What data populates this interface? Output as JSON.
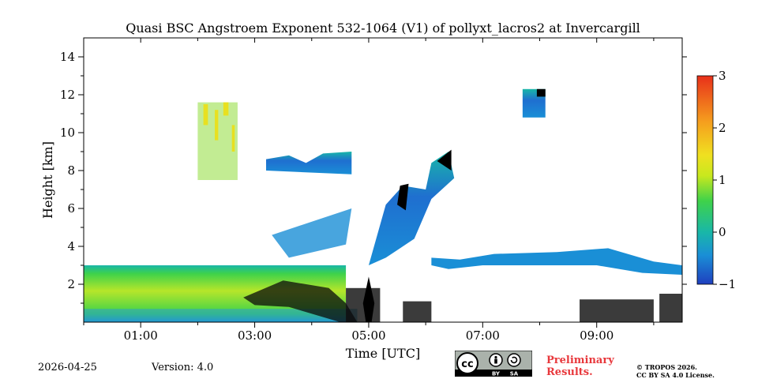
{
  "chart_data": {
    "type": "heatmap",
    "title": "Quasi BSC Angstroem Exponent 532-1064 (V1) of pollyxt_lacros2 at Invercargill",
    "xlabel": "Time [UTC]",
    "ylabel": "Height [km]",
    "xlim_hours": [
      0,
      10.5
    ],
    "ylim_km": [
      0,
      15
    ],
    "x_ticks": [
      {
        "value": 1,
        "label": "01:00"
      },
      {
        "value": 3,
        "label": "03:00"
      },
      {
        "value": 5,
        "label": "05:00"
      },
      {
        "value": 7,
        "label": "07:00"
      },
      {
        "value": 9,
        "label": "09:00"
      }
    ],
    "x_minor_ticks": [
      0,
      2,
      4,
      6,
      8,
      10
    ],
    "y_ticks": [
      2,
      4,
      6,
      8,
      10,
      12,
      14
    ],
    "colorbar": {
      "min": -1,
      "max": 3,
      "ticks": [
        -1,
        0,
        1,
        2,
        3
      ],
      "colormap": [
        "#1f3fbf",
        "#1a8fd6",
        "#19b7a8",
        "#3fd24a",
        "#c8e81e",
        "#f0e020",
        "#f59e1e",
        "#e8301a"
      ]
    },
    "features": [
      {
        "name": "boundary layer aerosol",
        "t_start": 0.0,
        "t_end": 4.6,
        "top_km": 3.0,
        "value_range": [
          0.3,
          1.2
        ]
      },
      {
        "name": "cirrus cloud",
        "t_start": 2.0,
        "t_end": 2.7,
        "base_km": 7.5,
        "top_km": 11.6,
        "value_range": [
          0,
          1.5
        ]
      },
      {
        "name": "mid-level cloud",
        "t_start": 3.2,
        "t_end": 4.7,
        "base_km": 7.8,
        "top_km": 9.0,
        "value_range": [
          -0.6,
          0.3
        ]
      },
      {
        "name": "cloud layer",
        "t_start": 5.3,
        "t_end": 6.5,
        "base_km": 4.0,
        "top_km": 9.0,
        "value_range": [
          -0.6,
          0.3
        ]
      },
      {
        "name": "high cloud",
        "t_start": 7.7,
        "t_end": 8.1,
        "base_km": 10.8,
        "top_km": 12.3,
        "value_range": [
          -0.5,
          0.3
        ]
      },
      {
        "name": "low cloud",
        "t_start": 6.1,
        "t_end": 10.5,
        "base_km": 2.5,
        "top_km": 4.0,
        "value_range": [
          -0.6,
          0.3
        ]
      }
    ]
  },
  "footer": {
    "date": "2026-04-25",
    "version": "Version: 4.0",
    "preliminary_line1": "Preliminary",
    "preliminary_line2": "Results.",
    "copyright_line1": "© TROPOS 2026.",
    "copyright_line2": "CC BY SA 4.0 License.",
    "license_badge": {
      "cc": "cc",
      "by": "BY",
      "sa": "SA"
    }
  }
}
